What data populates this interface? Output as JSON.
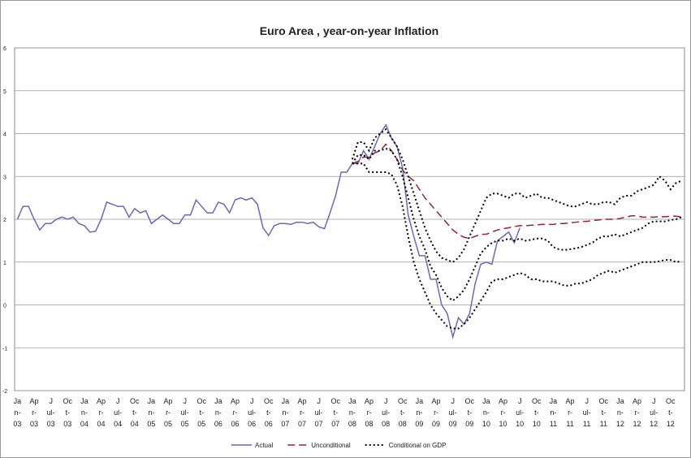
{
  "chart_data": {
    "type": "line",
    "title": "Euro Area , year-on-year Inflation",
    "categories": [
      "Jan-03",
      null,
      null,
      "Apr-03",
      null,
      null,
      "Jul-03",
      null,
      null,
      "Oct-03",
      null,
      null,
      "Jan-04",
      null,
      null,
      "Apr-04",
      null,
      null,
      "Jul-04",
      null,
      null,
      "Oct-04",
      null,
      null,
      "Jan-05",
      null,
      null,
      "Apr-05",
      null,
      null,
      "Jul-05",
      null,
      null,
      "Oct-05",
      null,
      null,
      "Jan-06",
      null,
      null,
      "Apr-06",
      null,
      null,
      "Jul-06",
      null,
      null,
      "Oct-06",
      null,
      null,
      "Jan-07",
      null,
      null,
      "Apr-07",
      null,
      null,
      "Jul-07",
      null,
      null,
      "Oct-07",
      null,
      null,
      "Jan-08",
      null,
      null,
      "Apr-08",
      null,
      null,
      "Jul-08",
      null,
      null,
      "Oct-08",
      null,
      null,
      "Jan-09",
      null,
      null,
      "Apr-09",
      null,
      null,
      "Jul-09",
      null,
      null,
      "Oct-09",
      null,
      null,
      "Jan-10",
      null,
      null,
      "Apr-10",
      null,
      null,
      "Jul-10",
      null,
      null,
      "Oct-10",
      null,
      null,
      "Jan-11",
      null,
      null,
      "Apr-11",
      null,
      null,
      "Jul-11",
      null,
      null,
      "Oct-11",
      null,
      null,
      "Jan-12",
      null,
      null,
      "Apr-12",
      null,
      null,
      "Jul-12",
      null,
      null,
      "Oct-12",
      null,
      null
    ],
    "ylim": [
      -2,
      6
    ],
    "yticks": [
      -2,
      -1,
      0,
      1,
      2,
      3,
      4,
      5,
      6
    ],
    "grid": true,
    "series": [
      {
        "name": "Actual",
        "color": "#6a6aae",
        "style": "solid",
        "values": [
          2.0,
          2.3,
          2.3,
          2.0,
          1.75,
          1.9,
          1.9,
          2.0,
          2.05,
          2.0,
          2.05,
          1.9,
          1.85,
          1.7,
          1.72,
          2.0,
          2.4,
          2.35,
          2.3,
          2.3,
          2.05,
          2.25,
          2.15,
          2.2,
          1.9,
          2.0,
          2.1,
          2.0,
          1.9,
          1.9,
          2.1,
          2.1,
          2.45,
          2.3,
          2.15,
          2.15,
          2.4,
          2.35,
          2.15,
          2.45,
          2.5,
          2.45,
          2.5,
          2.35,
          1.8,
          1.62,
          1.85,
          1.9,
          1.9,
          1.88,
          1.93,
          1.93,
          1.9,
          1.93,
          1.82,
          1.78,
          2.15,
          2.55,
          3.1,
          3.1,
          3.3,
          3.3,
          3.6,
          3.4,
          3.7,
          4.0,
          4.2,
          3.9,
          3.7,
          3.2,
          2.1,
          1.6,
          1.15,
          1.15,
          0.6,
          0.6,
          0.0,
          -0.2,
          -0.75,
          -0.3,
          -0.45,
          -0.2,
          0.5,
          0.95,
          1.0,
          0.95,
          1.5,
          1.6,
          1.7,
          1.45,
          1.8,
          null,
          null,
          null,
          null,
          null,
          null,
          null,
          null,
          null,
          null,
          null,
          null,
          null,
          null,
          null,
          null,
          null,
          null,
          null,
          null,
          null,
          null,
          null,
          null,
          null,
          null,
          null,
          null,
          null
        ]
      },
      {
        "name": "Unconditional",
        "color": "#8b2252",
        "style": "dashed",
        "values": [
          null,
          null,
          null,
          null,
          null,
          null,
          null,
          null,
          null,
          null,
          null,
          null,
          null,
          null,
          null,
          null,
          null,
          null,
          null,
          null,
          null,
          null,
          null,
          null,
          null,
          null,
          null,
          null,
          null,
          null,
          null,
          null,
          null,
          null,
          null,
          null,
          null,
          null,
          null,
          null,
          null,
          null,
          null,
          null,
          null,
          null,
          null,
          null,
          null,
          null,
          null,
          null,
          null,
          null,
          null,
          null,
          null,
          null,
          null,
          null,
          3.3,
          3.35,
          3.45,
          3.45,
          3.55,
          3.6,
          3.75,
          3.6,
          3.4,
          3.15,
          3.0,
          2.9,
          2.7,
          2.5,
          2.35,
          2.2,
          2.05,
          1.9,
          1.75,
          1.65,
          1.58,
          1.55,
          1.6,
          1.65,
          1.65,
          1.7,
          1.75,
          1.78,
          1.8,
          1.83,
          1.85,
          1.85,
          1.86,
          1.87,
          1.88,
          1.88,
          1.88,
          1.9,
          1.9,
          1.92,
          1.93,
          1.95,
          1.95,
          1.97,
          1.98,
          2.0,
          2.0,
          2.0,
          2.02,
          2.05,
          2.08,
          2.08,
          2.05,
          2.05,
          2.05,
          2.06,
          2.06,
          2.07,
          2.07,
          2.05
        ]
      },
      {
        "name": "Conditional on GDP",
        "color": "#000000",
        "style": "dotted",
        "values": [
          null,
          null,
          null,
          null,
          null,
          null,
          null,
          null,
          null,
          null,
          null,
          null,
          null,
          null,
          null,
          null,
          null,
          null,
          null,
          null,
          null,
          null,
          null,
          null,
          null,
          null,
          null,
          null,
          null,
          null,
          null,
          null,
          null,
          null,
          null,
          null,
          null,
          null,
          null,
          null,
          null,
          null,
          null,
          null,
          null,
          null,
          null,
          null,
          null,
          null,
          null,
          null,
          null,
          null,
          null,
          null,
          null,
          null,
          null,
          null,
          3.3,
          3.5,
          3.5,
          3.4,
          3.6,
          3.6,
          3.65,
          3.6,
          3.4,
          3.0,
          2.5,
          2.0,
          1.6,
          1.3,
          0.9,
          0.7,
          0.4,
          0.2,
          0.1,
          0.2,
          0.35,
          0.6,
          0.9,
          1.2,
          1.35,
          1.45,
          1.5,
          1.5,
          1.55,
          1.5,
          1.55,
          1.5,
          1.52,
          1.55,
          1.55,
          1.5,
          1.35,
          1.3,
          1.28,
          1.3,
          1.32,
          1.35,
          1.4,
          1.45,
          1.55,
          1.6,
          1.6,
          1.65,
          1.6,
          1.65,
          1.7,
          1.75,
          1.8,
          1.9,
          1.95,
          1.95,
          1.95,
          1.98,
          2.0,
          2.05
        ],
        "upper": [
          null,
          null,
          null,
          null,
          null,
          null,
          null,
          null,
          null,
          null,
          null,
          null,
          null,
          null,
          null,
          null,
          null,
          null,
          null,
          null,
          null,
          null,
          null,
          null,
          null,
          null,
          null,
          null,
          null,
          null,
          null,
          null,
          null,
          null,
          null,
          null,
          null,
          null,
          null,
          null,
          null,
          null,
          null,
          null,
          null,
          null,
          null,
          null,
          null,
          null,
          null,
          null,
          null,
          null,
          null,
          null,
          null,
          null,
          null,
          null,
          3.4,
          3.8,
          3.8,
          3.6,
          3.9,
          4.0,
          4.1,
          3.9,
          3.7,
          3.4,
          3.0,
          2.6,
          2.2,
          1.8,
          1.5,
          1.25,
          1.1,
          1.05,
          1.0,
          1.1,
          1.3,
          1.6,
          1.9,
          2.2,
          2.5,
          2.6,
          2.6,
          2.55,
          2.5,
          2.6,
          2.6,
          2.5,
          2.55,
          2.6,
          2.5,
          2.5,
          2.45,
          2.4,
          2.35,
          2.3,
          2.3,
          2.35,
          2.4,
          2.35,
          2.35,
          2.4,
          2.4,
          2.35,
          2.5,
          2.55,
          2.55,
          2.65,
          2.7,
          2.75,
          2.8,
          3.0,
          2.9,
          2.7,
          2.85,
          2.9
        ],
        "lower": [
          null,
          null,
          null,
          null,
          null,
          null,
          null,
          null,
          null,
          null,
          null,
          null,
          null,
          null,
          null,
          null,
          null,
          null,
          null,
          null,
          null,
          null,
          null,
          null,
          null,
          null,
          null,
          null,
          null,
          null,
          null,
          null,
          null,
          null,
          null,
          null,
          null,
          null,
          null,
          null,
          null,
          null,
          null,
          null,
          null,
          null,
          null,
          null,
          null,
          null,
          null,
          null,
          null,
          null,
          null,
          null,
          null,
          null,
          null,
          null,
          3.3,
          3.3,
          3.3,
          3.1,
          3.1,
          3.1,
          3.1,
          3.05,
          2.8,
          2.3,
          1.6,
          1.0,
          0.6,
          0.3,
          0.0,
          -0.2,
          -0.35,
          -0.5,
          -0.55,
          -0.55,
          -0.45,
          -0.3,
          -0.1,
          0.1,
          0.3,
          0.55,
          0.6,
          0.6,
          0.65,
          0.7,
          0.75,
          0.7,
          0.6,
          0.6,
          0.55,
          0.55,
          0.55,
          0.5,
          0.45,
          0.45,
          0.5,
          0.5,
          0.55,
          0.6,
          0.7,
          0.75,
          0.8,
          0.75,
          0.8,
          0.85,
          0.9,
          0.95,
          1.0,
          1.0,
          1.0,
          1.02,
          1.05,
          1.05,
          1.0,
          1.02
        ]
      }
    ]
  }
}
